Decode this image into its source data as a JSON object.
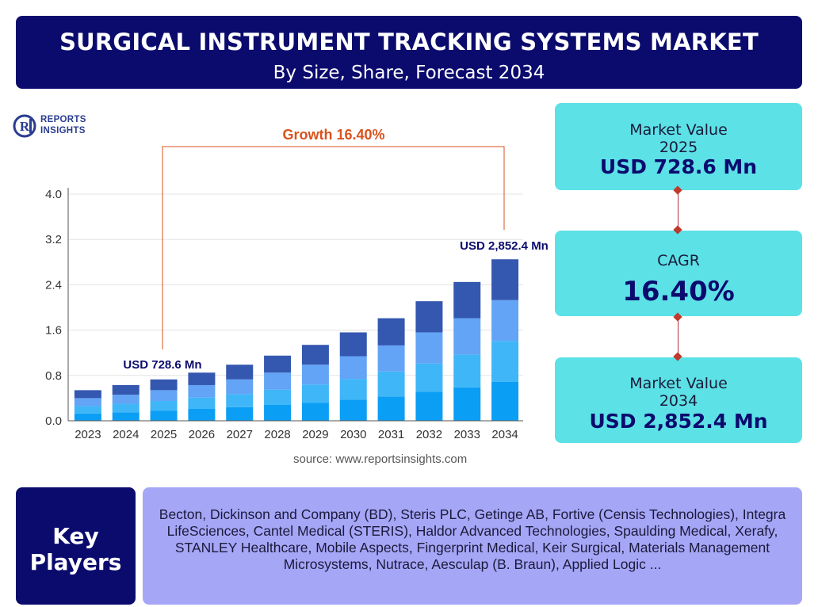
{
  "header": {
    "title": "SURGICAL INSTRUMENT TRACKING SYSTEMS MARKET",
    "subtitle": "By Size, Share, Forecast 2034"
  },
  "logo": {
    "line1": "REPORTS",
    "line2": "INSIGHTS"
  },
  "chart_data": {
    "type": "bar",
    "stacked": true,
    "categories": [
      "2023",
      "2024",
      "2025",
      "2026",
      "2027",
      "2028",
      "2029",
      "2030",
      "2031",
      "2032",
      "2033",
      "2034"
    ],
    "totals": [
      0.54,
      0.63,
      0.73,
      0.85,
      0.99,
      1.15,
      1.34,
      1.56,
      1.81,
      2.11,
      2.45,
      2.85
    ],
    "series": [
      {
        "values": [
          0.13,
          0.15,
          0.18,
          0.21,
          0.24,
          0.28,
          0.32,
          0.37,
          0.43,
          0.51,
          0.59,
          0.69
        ]
      },
      {
        "values": [
          0.13,
          0.15,
          0.17,
          0.2,
          0.23,
          0.27,
          0.32,
          0.37,
          0.44,
          0.5,
          0.58,
          0.72
        ]
      },
      {
        "values": [
          0.14,
          0.16,
          0.19,
          0.22,
          0.26,
          0.3,
          0.35,
          0.4,
          0.46,
          0.55,
          0.64,
          0.72
        ]
      },
      {
        "values": [
          0.14,
          0.17,
          0.19,
          0.22,
          0.26,
          0.3,
          0.35,
          0.42,
          0.48,
          0.55,
          0.64,
          0.72
        ]
      }
    ],
    "series_colors": [
      "#0b9ef5",
      "#3fb6f7",
      "#63a4f6",
      "#3457b0"
    ],
    "yticks": [
      "0.0",
      "0.8",
      "1.6",
      "2.4",
      "3.2",
      "4.0"
    ],
    "ylim": [
      0,
      4.0
    ],
    "grid": true,
    "annotations": {
      "growth_label": "Growth 16.40%",
      "start_label": "USD 728.6 Mn",
      "end_label": "USD 2,852.4 Mn"
    }
  },
  "source": "source: www.reportsinsights.com",
  "cards": [
    {
      "label": "Market Value",
      "sublabel": "2025",
      "value": "USD 728.6 Mn"
    },
    {
      "label": "CAGR",
      "value": "16.40%"
    },
    {
      "label": "Market Value",
      "sublabel": "2034",
      "value": "USD 2,852.4 Mn"
    }
  ],
  "key_players": {
    "label": "Key Players",
    "text": "Becton, Dickinson and Company (BD), Steris PLC, Getinge AB, Fortive (Censis Technologies), Integra LifeSciences, Cantel Medical (STERIS), Haldor Advanced Technologies, Spaulding Medical, Xerafy, STANLEY Healthcare, Mobile Aspects, Fingerprint Medical, Keir Surgical, Materials Management Microsystems, Nutrace, Aesculap (B. Braun), Applied Logic ..."
  },
  "colors": {
    "navy": "#0b0b6e",
    "cyan_card": "#5ce1e6",
    "lavender": "#a6a6f7",
    "growth_red": "#d9531e",
    "connector_red": "#c0392b"
  }
}
